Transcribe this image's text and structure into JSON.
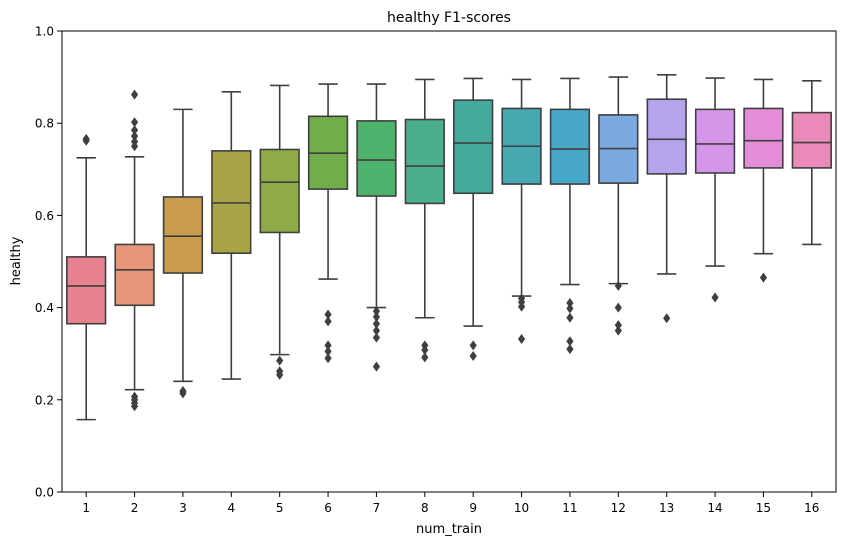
{
  "chart_data": {
    "type": "boxplot",
    "title": "healthy F1-scores",
    "xlabel": "num_train",
    "ylabel": "healthy",
    "ylim": [
      0.0,
      1.0
    ],
    "yticks": [
      "0.0",
      "0.2",
      "0.4",
      "0.6",
      "0.8",
      "1.0"
    ],
    "ytick_values": [
      0.0,
      0.2,
      0.4,
      0.6,
      0.8,
      1.0
    ],
    "grid": false,
    "categories": [
      "1",
      "2",
      "3",
      "4",
      "5",
      "6",
      "7",
      "8",
      "9",
      "10",
      "11",
      "12",
      "13",
      "14",
      "15",
      "16"
    ],
    "boxes": [
      {
        "q1": 0.365,
        "median": 0.447,
        "q3": 0.51,
        "whislo": 0.157,
        "whishi": 0.725,
        "fliers": [
          0.762,
          0.766
        ],
        "color": "#e8828f"
      },
      {
        "q1": 0.405,
        "median": 0.482,
        "q3": 0.537,
        "whislo": 0.222,
        "whishi": 0.727,
        "fliers": [
          0.186,
          0.193,
          0.2,
          0.207,
          0.75,
          0.76,
          0.772,
          0.785,
          0.802,
          0.862
        ],
        "color": "#e8967a"
      },
      {
        "q1": 0.475,
        "median": 0.555,
        "q3": 0.64,
        "whislo": 0.24,
        "whishi": 0.83,
        "fliers": [
          0.214,
          0.219
        ],
        "color": "#c99c4e"
      },
      {
        "q1": 0.518,
        "median": 0.627,
        "q3": 0.74,
        "whislo": 0.245,
        "whishi": 0.868,
        "fliers": [],
        "color": "#a9a446"
      },
      {
        "q1": 0.563,
        "median": 0.672,
        "q3": 0.743,
        "whislo": 0.298,
        "whishi": 0.882,
        "fliers": [
          0.254,
          0.262,
          0.285
        ],
        "color": "#8fab47"
      },
      {
        "q1": 0.657,
        "median": 0.735,
        "q3": 0.815,
        "whislo": 0.462,
        "whishi": 0.885,
        "fliers": [
          0.29,
          0.305,
          0.318,
          0.37,
          0.385
        ],
        "color": "#6fae4a"
      },
      {
        "q1": 0.642,
        "median": 0.72,
        "q3": 0.805,
        "whislo": 0.4,
        "whishi": 0.885,
        "fliers": [
          0.272,
          0.335,
          0.35,
          0.365,
          0.38,
          0.392
        ],
        "color": "#4db36c"
      },
      {
        "q1": 0.626,
        "median": 0.707,
        "q3": 0.808,
        "whislo": 0.378,
        "whishi": 0.895,
        "fliers": [
          0.292,
          0.308,
          0.318
        ],
        "color": "#4aaf8c"
      },
      {
        "q1": 0.648,
        "median": 0.757,
        "q3": 0.85,
        "whislo": 0.36,
        "whishi": 0.897,
        "fliers": [
          0.295,
          0.318
        ],
        "color": "#44aa9d"
      },
      {
        "q1": 0.668,
        "median": 0.75,
        "q3": 0.832,
        "whislo": 0.425,
        "whishi": 0.895,
        "fliers": [
          0.332,
          0.402,
          0.412,
          0.42
        ],
        "color": "#46a8b1"
      },
      {
        "q1": 0.668,
        "median": 0.744,
        "q3": 0.83,
        "whislo": 0.45,
        "whishi": 0.897,
        "fliers": [
          0.31,
          0.327,
          0.378,
          0.398,
          0.41
        ],
        "color": "#47a9c7"
      },
      {
        "q1": 0.67,
        "median": 0.745,
        "q3": 0.818,
        "whislo": 0.452,
        "whishi": 0.9,
        "fliers": [
          0.35,
          0.362,
          0.4,
          0.447
        ],
        "color": "#7aaae0"
      },
      {
        "q1": 0.69,
        "median": 0.765,
        "q3": 0.852,
        "whislo": 0.473,
        "whishi": 0.905,
        "fliers": [
          0.377
        ],
        "color": "#b3a4ec"
      },
      {
        "q1": 0.692,
        "median": 0.755,
        "q3": 0.83,
        "whislo": 0.49,
        "whishi": 0.898,
        "fliers": [
          0.422
        ],
        "color": "#d396e8"
      },
      {
        "q1": 0.703,
        "median": 0.762,
        "q3": 0.832,
        "whislo": 0.517,
        "whishi": 0.895,
        "fliers": [
          0.465
        ],
        "color": "#e38cd8"
      },
      {
        "q1": 0.703,
        "median": 0.758,
        "q3": 0.823,
        "whislo": 0.537,
        "whishi": 0.892,
        "fliers": [],
        "color": "#e98ab9"
      }
    ]
  }
}
